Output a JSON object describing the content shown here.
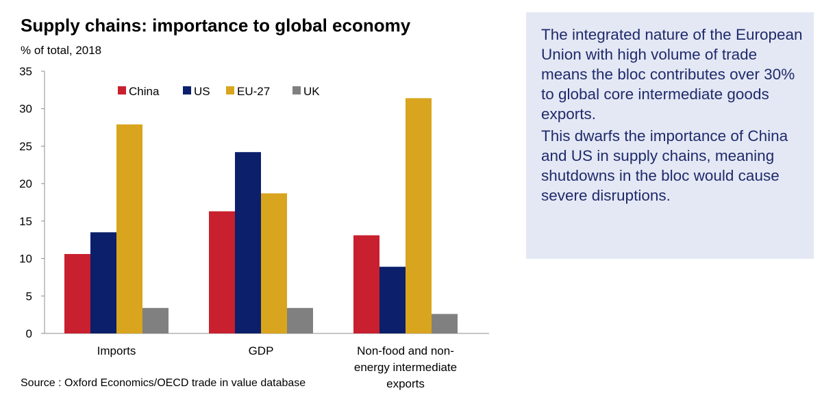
{
  "chart_data": {
    "type": "bar",
    "title": "Supply chains: importance to global economy",
    "subtitle": "% of total, 2018",
    "categories": [
      [
        "Imports"
      ],
      [
        "GDP"
      ],
      [
        "Non-food and non-",
        "energy intermediate",
        "exports"
      ]
    ],
    "series": [
      {
        "name": "China",
        "color": "#c8202f",
        "values": [
          10.6,
          16.3,
          13.1
        ]
      },
      {
        "name": "US",
        "color": "#0b1f6b",
        "values": [
          13.5,
          24.2,
          8.9
        ]
      },
      {
        "name": "EU-27",
        "color": "#d9a51e",
        "values": [
          27.9,
          18.7,
          31.4
        ]
      },
      {
        "name": "UK",
        "color": "#808080",
        "values": [
          3.4,
          3.4,
          2.6
        ]
      }
    ],
    "ylim": [
      0,
      35
    ],
    "yticks": [
      "0",
      "5",
      "10",
      "15",
      "20",
      "25",
      "30",
      "35"
    ],
    "xlabel": "",
    "ylabel": "",
    "legend_position": "top-center",
    "source": "Source : Oxford Economics/OECD trade in value database"
  },
  "info_box": {
    "paragraphs": [
      "The integrated nature of the European Union with high volume of trade means the bloc contributes over 30% to global core intermediate goods exports.",
      "This dwarfs the importance of China and US in supply chains, meaning shutdowns in the bloc would cause severe disruptions."
    ],
    "background": "#e4e8f4",
    "text_color": "#1f2a6b"
  }
}
